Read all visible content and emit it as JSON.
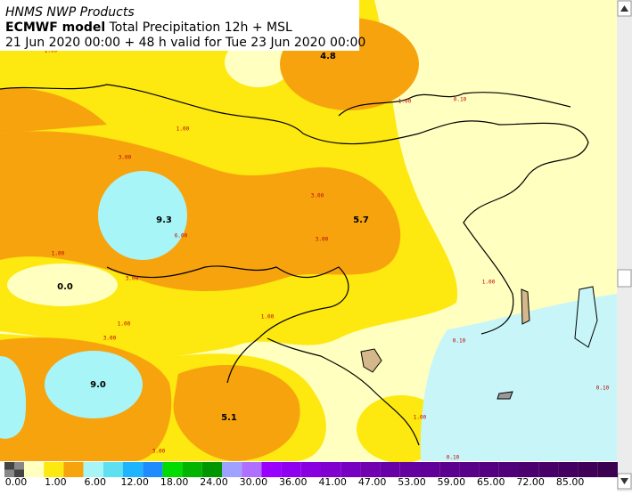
{
  "header": {
    "title": "HNMS NWP Products",
    "model": "ECMWF model",
    "product": "Total Precipitation 12h + MSL",
    "validity": "21 Jun 2020 00:00 + 48 h valid for Tue 23 Jun 2020 00:00"
  },
  "map": {
    "max_labels": [
      "4.8",
      "9.3",
      "5.7",
      "0.0",
      "9.0",
      "5.1"
    ],
    "contour_labels": [
      "1.00",
      "1.00",
      "0.10",
      "1.00",
      "3.00",
      "3.00",
      "6.00",
      "3.00",
      "1.00",
      "3.00",
      "1.00",
      "1.00",
      "1.00",
      "3.00",
      "0.10",
      "1.00",
      "0.10",
      "3.00",
      "0.10"
    ]
  },
  "legend": {
    "ticks": [
      "0.00",
      "1.00",
      "6.00",
      "12.00",
      "18.00",
      "24.00",
      "30.00",
      "36.00",
      "41.00",
      "47.00",
      "53.00",
      "59.00",
      "65.00",
      "72.00",
      "85.00"
    ]
  }
}
